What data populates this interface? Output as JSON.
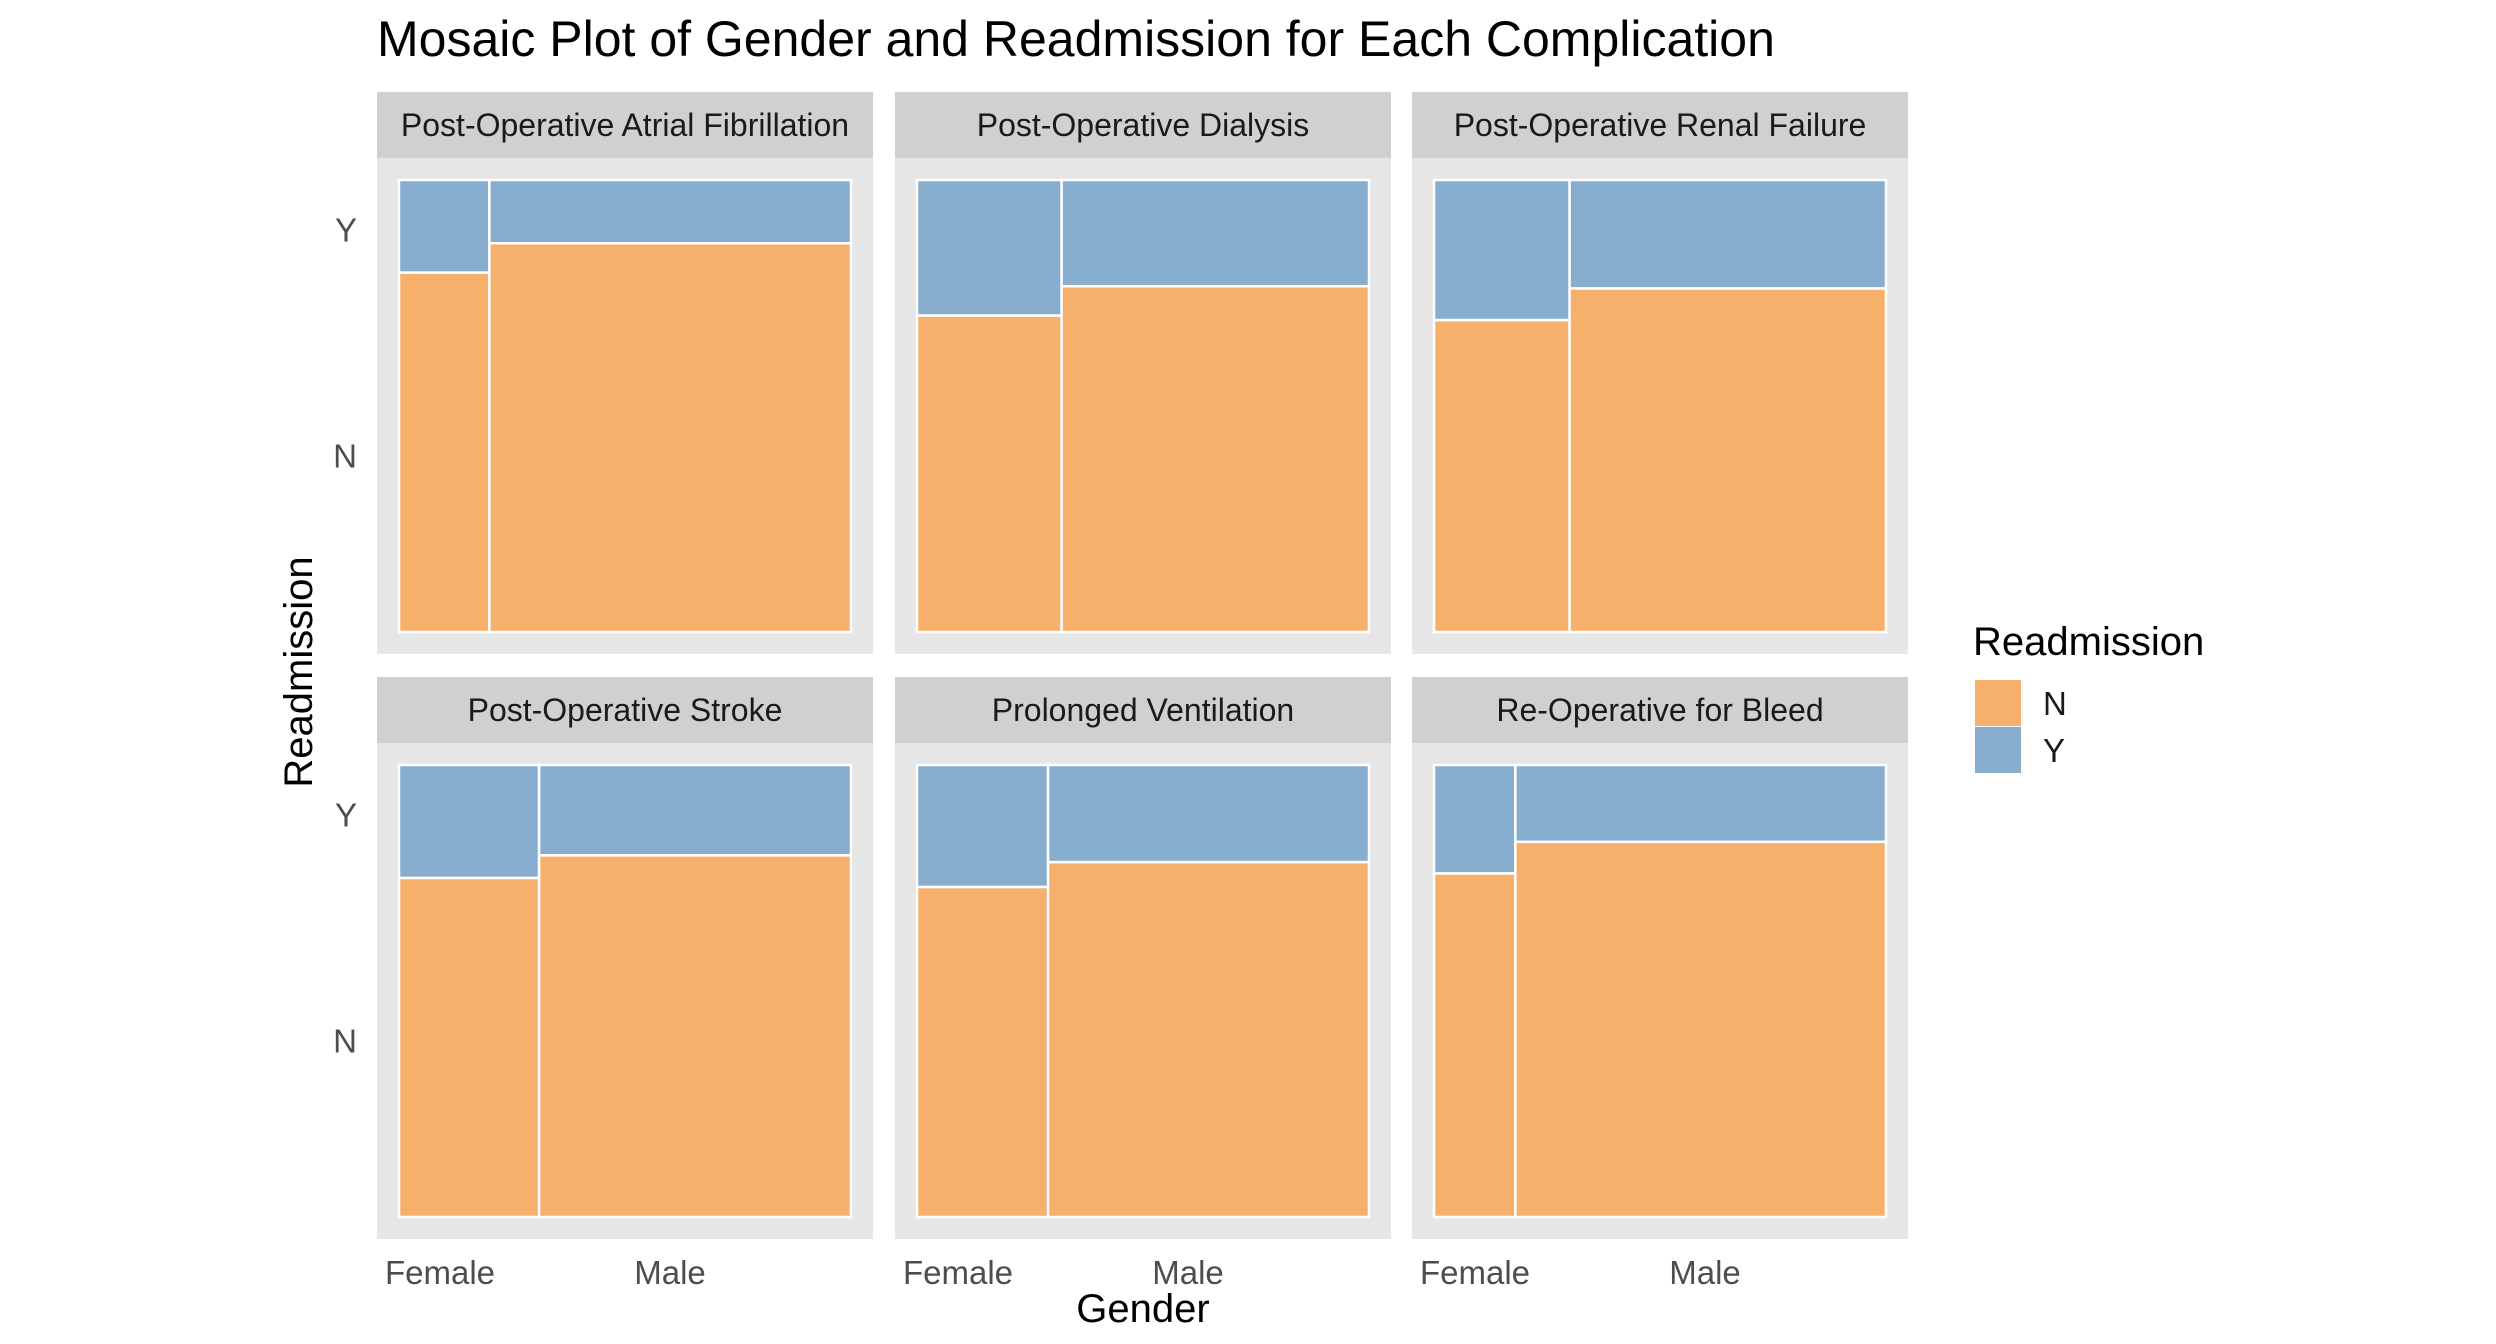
{
  "chart_data": {
    "type": "mosaic",
    "title": "Mosaic Plot of Gender and Readmission for Each Complication",
    "xlabel": "Gender",
    "ylabel": "Readmission",
    "x_categories": [
      "Female",
      "Male"
    ],
    "y_categories": [
      "N",
      "Y"
    ],
    "legend": {
      "title": "Readmission",
      "placement": "right",
      "entries": [
        {
          "label": "N",
          "color": "#F7B06B"
        },
        {
          "label": "Y",
          "color": "#87ADCF"
        }
      ]
    },
    "colors": {
      "N": "#F7B06B",
      "Y": "#87ADCF",
      "panel_background": "#E6E6E6",
      "strip_background": "#D0D0D0"
    },
    "note": "female_share = share of patients who are Female; readmit_y = proportion readmitted (Y) within each gender",
    "panels": [
      {
        "label": "Post-Operative Atrial Fibrillation",
        "female_share": 0.2,
        "readmit_y": {
          "Female": 0.205,
          "Male": 0.14
        }
      },
      {
        "label": "Post-Operative Dialysis",
        "female_share": 0.32,
        "readmit_y": {
          "Female": 0.3,
          "Male": 0.235
        }
      },
      {
        "label": "Post-Operative Renal Failure",
        "female_share": 0.3,
        "readmit_y": {
          "Female": 0.31,
          "Male": 0.24
        }
      },
      {
        "label": "Post-Operative Stroke",
        "female_share": 0.31,
        "readmit_y": {
          "Female": 0.25,
          "Male": 0.2
        }
      },
      {
        "label": "Prolonged Ventilation",
        "female_share": 0.29,
        "readmit_y": {
          "Female": 0.27,
          "Male": 0.215
        }
      },
      {
        "label": "Re-Operative for Bleed",
        "female_share": 0.18,
        "readmit_y": {
          "Female": 0.24,
          "Male": 0.17
        }
      }
    ]
  }
}
